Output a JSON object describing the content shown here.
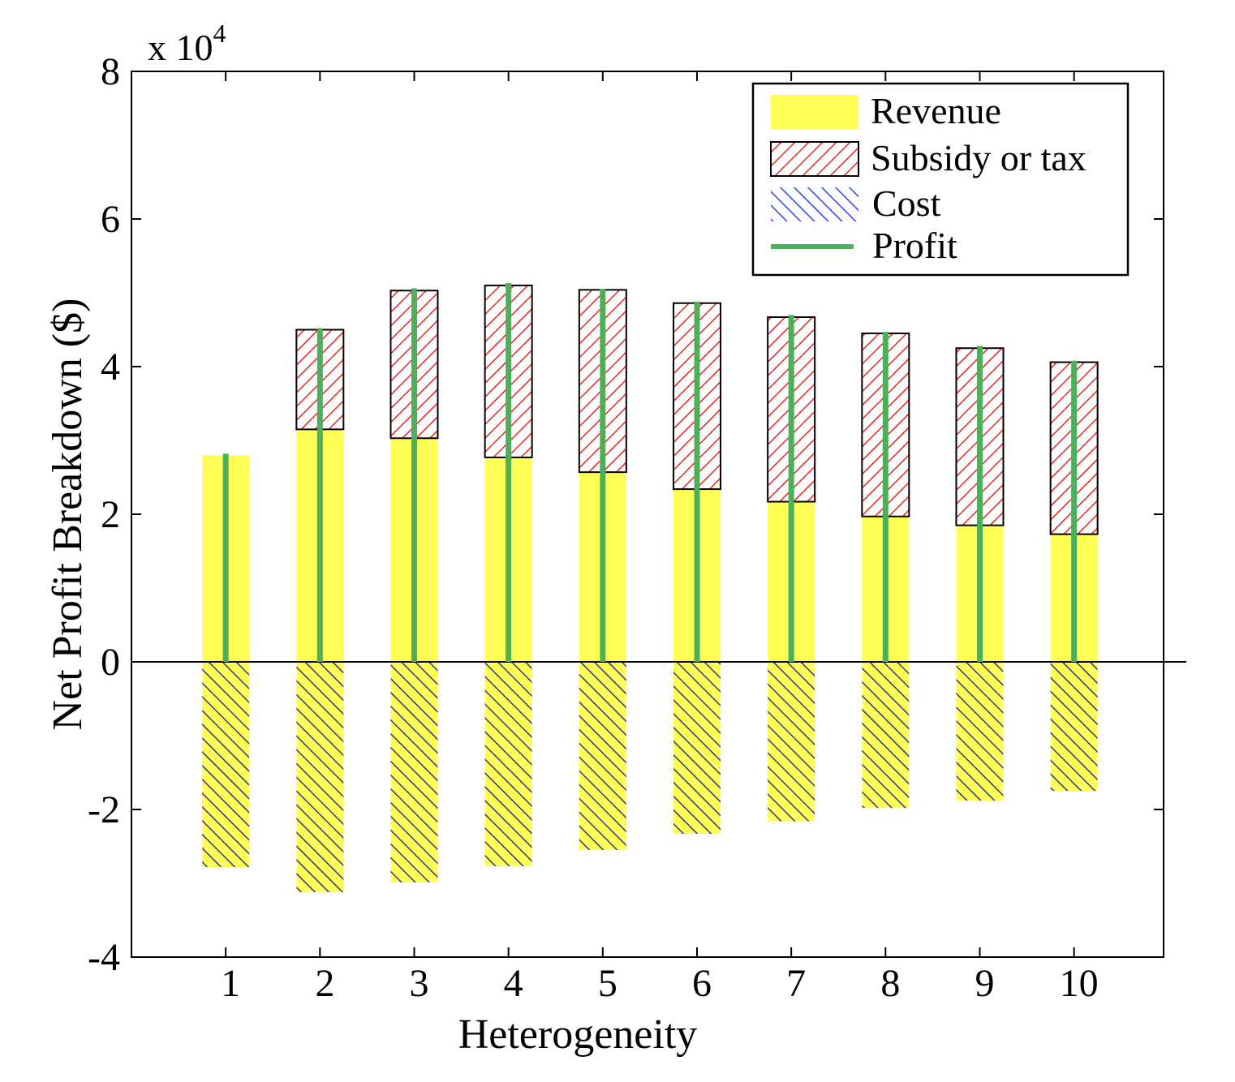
{
  "chart_data": {
    "type": "bar",
    "xlabel": "Heterogeneity",
    "ylabel": "Net Profit Breakdown ($)",
    "y_multiplier": "x 10",
    "y_multiplier_exp": "4",
    "x": [
      1,
      2,
      3,
      4,
      5,
      6,
      7,
      8,
      9,
      10
    ],
    "x_tick_labels": [
      "1",
      "2",
      "3",
      "4",
      "5",
      "6",
      "7",
      "8",
      "9",
      "10"
    ],
    "xlim": [
      0,
      10.95
    ],
    "ylim": [
      -4,
      8
    ],
    "y_ticks": [
      -4,
      -2,
      0,
      2,
      4,
      6,
      8
    ],
    "y_tick_labels": [
      "-4",
      "-2",
      "0",
      "2",
      "4",
      "6",
      "8"
    ],
    "series": [
      {
        "name": "Revenue",
        "style": "solid",
        "values": [
          2.8,
          3.15,
          3.03,
          2.77,
          2.57,
          2.34,
          2.17,
          1.97,
          1.85,
          1.73
        ]
      },
      {
        "name": "Subsidy or tax",
        "style": "red-hatch-stacked",
        "values": [
          0,
          1.35,
          2.0,
          2.33,
          2.47,
          2.52,
          2.5,
          2.48,
          2.4,
          2.33
        ]
      },
      {
        "name": "Cost",
        "style": "blue-hatch-negative",
        "values": [
          -2.78,
          -3.12,
          -2.99,
          -2.77,
          -2.55,
          -2.33,
          -2.16,
          -1.98,
          -1.88,
          -1.75
        ]
      },
      {
        "name": "Profit",
        "style": "line",
        "values": [
          2.82,
          4.52,
          5.06,
          5.13,
          5.05,
          4.88,
          4.7,
          4.47,
          4.28,
          4.08
        ]
      }
    ],
    "legend": {
      "position": "top-right"
    },
    "grid": false,
    "colors": {
      "revenue": "#ffff55",
      "subsidy_hatch": "#ee2222",
      "cost_hatch": "#2a3a8a",
      "profit": "#4caf5a",
      "axis": "#000000"
    }
  }
}
